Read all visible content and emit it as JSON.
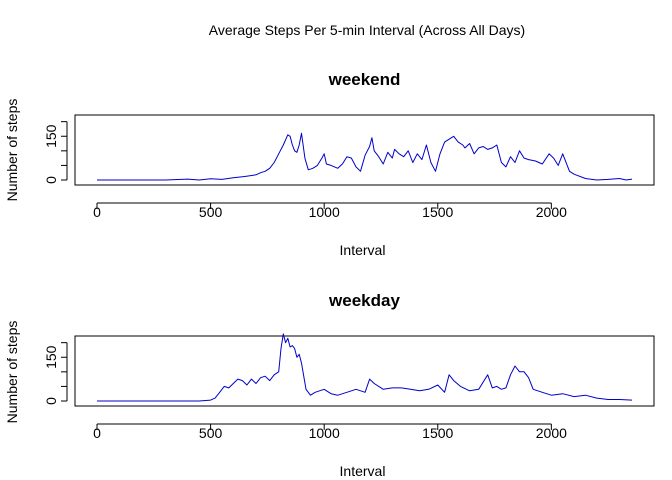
{
  "figure_title": "Average Steps Per 5-min Interval (Across All Days)",
  "chart_data": [
    {
      "type": "line",
      "title": "weekend",
      "xlabel": "Interval",
      "ylabel": "Number of steps",
      "xlim": [
        0,
        2355
      ],
      "ylim": [
        0,
        240
      ],
      "x_ticks": [
        0,
        500,
        1000,
        1500,
        2000
      ],
      "y_ticks": [
        0,
        50,
        100,
        150,
        200
      ],
      "y_tick_labels": [
        "0",
        "",
        "",
        "150",
        ""
      ],
      "line_color": "#0000cc",
      "x": [
        0,
        100,
        200,
        300,
        400,
        450,
        500,
        550,
        600,
        650,
        700,
        720,
        740,
        760,
        780,
        800,
        820,
        840,
        850,
        860,
        870,
        880,
        890,
        900,
        915,
        930,
        950,
        970,
        990,
        1000,
        1010,
        1030,
        1060,
        1080,
        1100,
        1120,
        1140,
        1160,
        1180,
        1200,
        1210,
        1220,
        1240,
        1260,
        1280,
        1300,
        1310,
        1330,
        1350,
        1370,
        1390,
        1410,
        1430,
        1450,
        1470,
        1490,
        1510,
        1530,
        1550,
        1570,
        1590,
        1610,
        1620,
        1640,
        1660,
        1680,
        1700,
        1720,
        1740,
        1760,
        1780,
        1800,
        1820,
        1840,
        1860,
        1880,
        1900,
        1930,
        1960,
        1990,
        2010,
        2030,
        2050,
        2080,
        2100,
        2150,
        2200,
        2250,
        2300,
        2330,
        2355
      ],
      "y": [
        0,
        0,
        0,
        0,
        3,
        0,
        4,
        2,
        8,
        12,
        18,
        25,
        30,
        40,
        60,
        90,
        120,
        155,
        150,
        120,
        100,
        95,
        120,
        160,
        75,
        35,
        40,
        50,
        75,
        90,
        55,
        50,
        40,
        55,
        80,
        75,
        45,
        30,
        85,
        115,
        145,
        100,
        80,
        55,
        95,
        75,
        105,
        90,
        80,
        100,
        60,
        90,
        70,
        120,
        60,
        30,
        90,
        130,
        140,
        150,
        130,
        120,
        110,
        125,
        90,
        110,
        115,
        105,
        110,
        120,
        60,
        45,
        80,
        60,
        100,
        75,
        70,
        65,
        55,
        90,
        75,
        50,
        90,
        30,
        20,
        5,
        0,
        2,
        5,
        0,
        3
      ]
    },
    {
      "type": "line",
      "title": "weekday",
      "xlabel": "Interval",
      "ylabel": "Number of steps",
      "xlim": [
        0,
        2355
      ],
      "ylim": [
        0,
        240
      ],
      "x_ticks": [
        0,
        500,
        1000,
        1500,
        2000
      ],
      "y_ticks": [
        0,
        50,
        100,
        150,
        200
      ],
      "y_tick_labels": [
        "0",
        "",
        "",
        "150",
        ""
      ],
      "line_color": "#0000cc",
      "x": [
        0,
        100,
        200,
        300,
        400,
        450,
        500,
        520,
        540,
        560,
        580,
        600,
        620,
        640,
        660,
        680,
        700,
        720,
        740,
        760,
        780,
        800,
        810,
        820,
        830,
        840,
        850,
        860,
        870,
        880,
        890,
        900,
        920,
        940,
        960,
        980,
        1000,
        1030,
        1060,
        1100,
        1140,
        1180,
        1200,
        1220,
        1260,
        1300,
        1340,
        1380,
        1420,
        1460,
        1500,
        1530,
        1550,
        1570,
        1600,
        1640,
        1680,
        1720,
        1740,
        1760,
        1780,
        1800,
        1820,
        1840,
        1860,
        1880,
        1900,
        1920,
        1960,
        2000,
        2050,
        2100,
        2150,
        2200,
        2250,
        2300,
        2355
      ],
      "y": [
        0,
        0,
        0,
        0,
        0,
        0,
        3,
        10,
        30,
        50,
        45,
        60,
        75,
        70,
        55,
        75,
        60,
        80,
        85,
        70,
        90,
        100,
        180,
        230,
        200,
        215,
        185,
        190,
        180,
        150,
        160,
        130,
        40,
        20,
        30,
        35,
        40,
        25,
        20,
        30,
        40,
        30,
        75,
        60,
        40,
        45,
        45,
        40,
        35,
        40,
        55,
        30,
        90,
        70,
        50,
        35,
        40,
        90,
        45,
        50,
        40,
        45,
        90,
        120,
        100,
        100,
        80,
        40,
        30,
        20,
        25,
        15,
        20,
        10,
        5,
        5,
        3
      ]
    }
  ]
}
